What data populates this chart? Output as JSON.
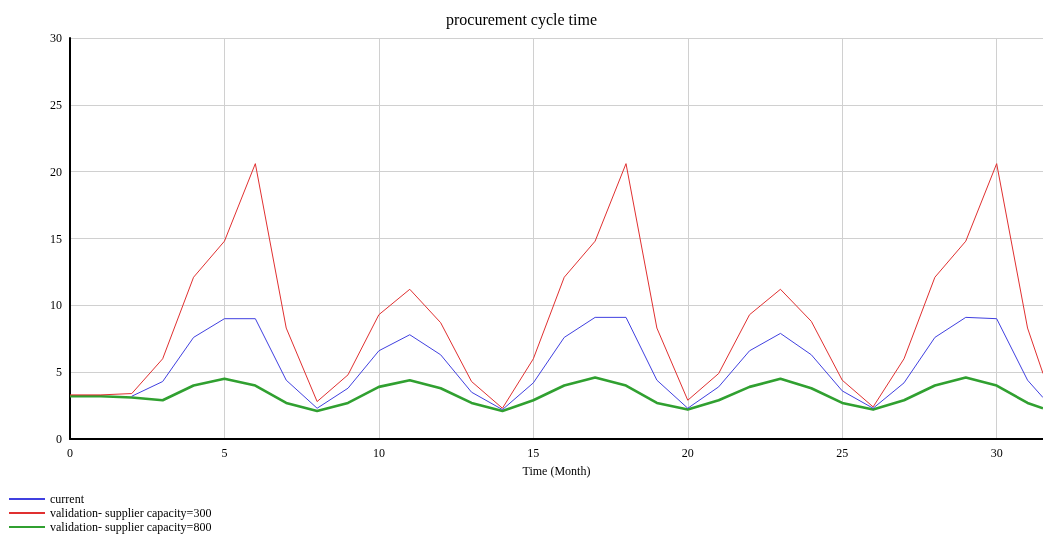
{
  "chart_data": {
    "type": "line",
    "title": "procurement cycle time",
    "xlabel": "Time (Month)",
    "x": [
      0,
      1,
      2,
      3,
      4,
      5,
      6,
      7,
      8,
      9,
      10,
      11,
      12,
      13,
      14,
      15,
      16,
      17,
      18,
      19,
      20,
      21,
      22,
      23,
      24,
      25,
      26,
      27,
      28,
      29,
      30,
      31,
      31.5
    ],
    "series": [
      {
        "name": "current",
        "color": "#4040e0",
        "values": [
          null,
          null,
          3.2,
          4.3,
          7.6,
          9.0,
          9.0,
          4.4,
          2.3,
          3.8,
          6.6,
          7.8,
          6.3,
          3.5,
          2.2,
          4.2,
          7.6,
          9.1,
          9.1,
          4.4,
          2.3,
          3.9,
          6.6,
          7.9,
          6.3,
          3.6,
          2.3,
          4.2,
          7.6,
          9.1,
          9.0,
          4.4,
          3.1
        ]
      },
      {
        "name": "validation- supplier capacity=300",
        "color": "#e03030",
        "values": [
          3.3,
          3.3,
          3.4,
          6.0,
          12.1,
          14.8,
          20.6,
          8.3,
          2.8,
          4.8,
          9.3,
          11.2,
          8.7,
          4.3,
          2.3,
          6.0,
          12.1,
          14.8,
          20.6,
          8.3,
          2.9,
          4.9,
          9.3,
          11.2,
          8.8,
          4.4,
          2.4,
          6.0,
          12.1,
          14.8,
          20.6,
          8.3,
          4.9
        ]
      },
      {
        "name": "validation- supplier capacity=800",
        "color": "#30a030",
        "values": [
          3.2,
          3.2,
          3.1,
          2.9,
          4.0,
          4.5,
          4.0,
          2.7,
          2.1,
          2.7,
          3.9,
          4.4,
          3.8,
          2.7,
          2.1,
          2.9,
          4.0,
          4.6,
          4.0,
          2.7,
          2.2,
          2.9,
          3.9,
          4.5,
          3.8,
          2.7,
          2.2,
          2.9,
          4.0,
          4.6,
          4.0,
          2.7,
          2.3
        ]
      }
    ],
    "xlim": [
      0,
      31.5
    ],
    "xticks": [
      0,
      5,
      10,
      15,
      20,
      25,
      30
    ],
    "ylim": [
      0,
      30
    ],
    "yticks": [
      0,
      5,
      10,
      15,
      20,
      25,
      30
    ],
    "grid": true,
    "legend": "bottom left",
    "marker": "none",
    "line_style": "solid"
  }
}
